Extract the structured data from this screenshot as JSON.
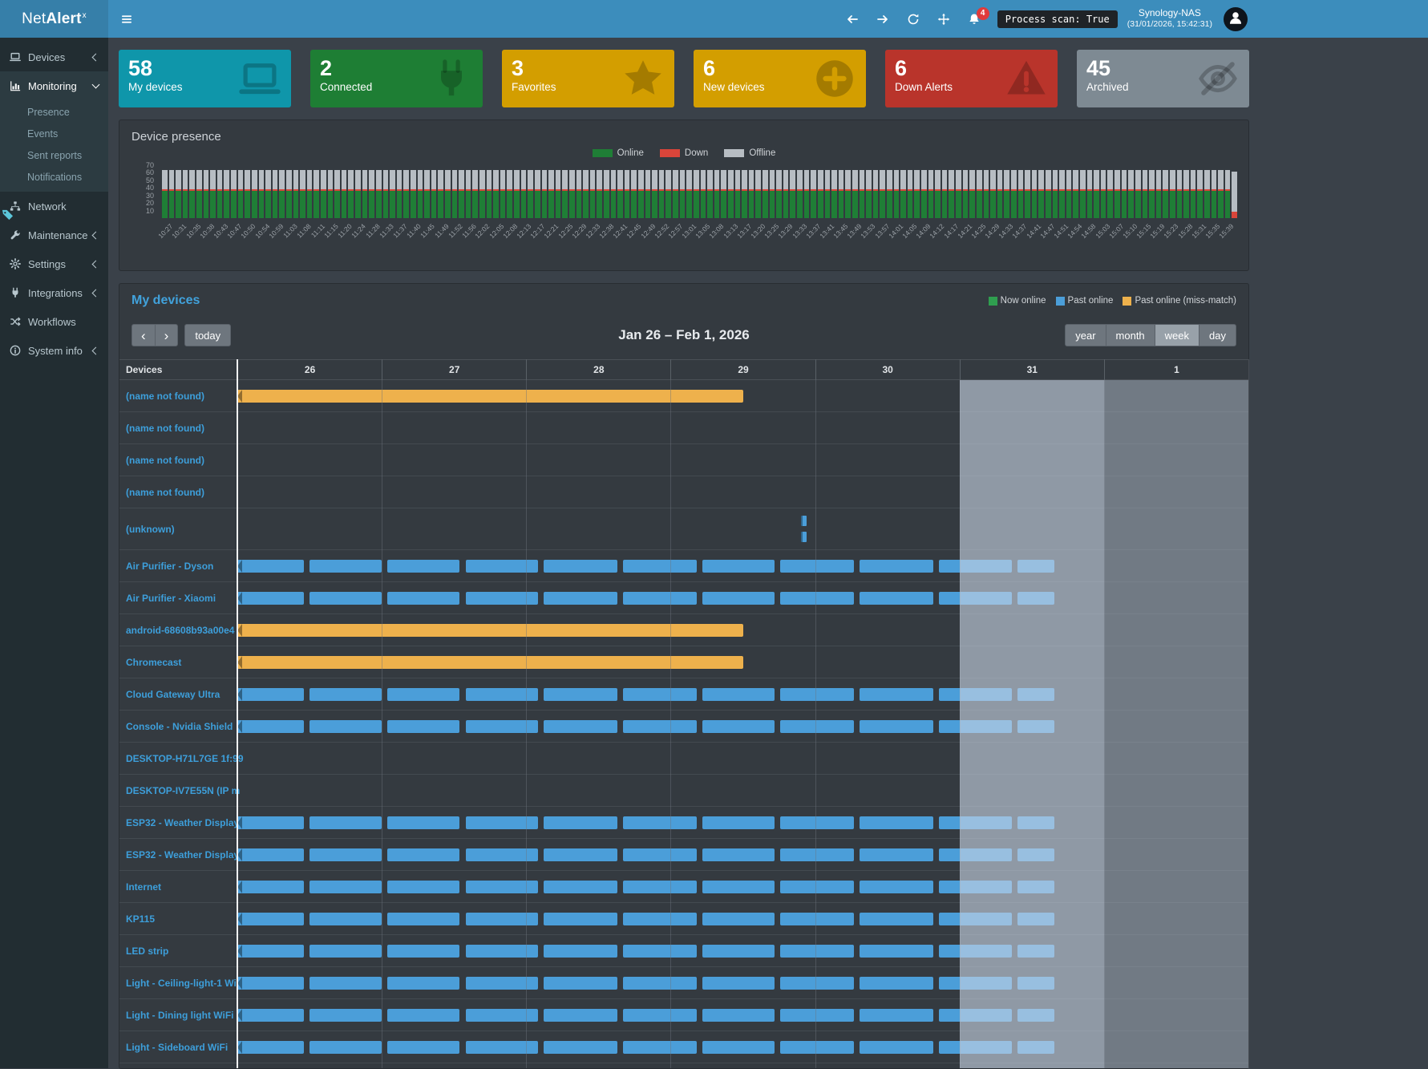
{
  "header": {
    "brand_light": "Net",
    "brand_bold": "Alert",
    "brand_sup": "x",
    "notification_count": "4",
    "process_scan": "Process scan: True",
    "host_name": "Synology-NAS",
    "host_time": "(31/01/2026, 15:42:31)"
  },
  "sidebar": {
    "items": [
      {
        "label": "Devices",
        "icon": "laptop-icon",
        "chevron": "left"
      },
      {
        "label": "Monitoring",
        "icon": "chart-icon",
        "chevron": "down",
        "active": true,
        "children": [
          {
            "label": "Presence"
          },
          {
            "label": "Events"
          },
          {
            "label": "Sent reports"
          },
          {
            "label": "Notifications"
          }
        ]
      },
      {
        "label": "Network",
        "icon": "network-icon"
      },
      {
        "label": "Maintenance",
        "icon": "wrench-icon",
        "chevron": "left"
      },
      {
        "label": "Settings",
        "icon": "gear-icon",
        "chevron": "left"
      },
      {
        "label": "Integrations",
        "icon": "plug-icon",
        "chevron": "left"
      },
      {
        "label": "Workflows",
        "icon": "shuffle-icon"
      },
      {
        "label": "System info",
        "icon": "info-icon",
        "chevron": "left"
      }
    ]
  },
  "stat_cards": [
    {
      "value": "58",
      "label": "My devices",
      "color": "#0f96aa",
      "icon": "laptop-icon"
    },
    {
      "value": "2",
      "label": "Connected",
      "color": "#1e7e34",
      "icon": "plug-icon"
    },
    {
      "value": "3",
      "label": "Favorites",
      "color": "#d39e00",
      "icon": "star-icon"
    },
    {
      "value": "6",
      "label": "New devices",
      "color": "#d39e00",
      "icon": "plus-circle-icon"
    },
    {
      "value": "6",
      "label": "Down Alerts",
      "color": "#b9342b",
      "icon": "warning-icon"
    },
    {
      "value": "45",
      "label": "Archived",
      "color": "#7e8a93",
      "icon": "eye-slash-icon"
    }
  ],
  "presence": {
    "title": "Device presence",
    "chart_data": {
      "type": "bar",
      "stacked": true,
      "title": "Device presence",
      "ylim": [
        0,
        70
      ],
      "yticks": [
        70,
        60,
        50,
        40,
        30,
        20,
        10
      ],
      "bars_per_label": 2,
      "legend_position": "top-center",
      "series": [
        {
          "name": "Online",
          "color": "#1f7e36",
          "value_per_bar": 36
        },
        {
          "name": "Down",
          "color": "#d9453a",
          "value_per_bar": 2
        },
        {
          "name": "Offline",
          "color": "#b7bdc3",
          "value_per_bar": 26
        }
      ],
      "last_bar": {
        "Online": 0,
        "Down": 8,
        "Offline": 54
      },
      "x_labels": [
        "10:27",
        "10:31",
        "10:35",
        "10:38",
        "10:43",
        "10:47",
        "10:50",
        "10:54",
        "10:59",
        "11:03",
        "11:08",
        "11:11",
        "11:15",
        "11:20",
        "11:24",
        "11:28",
        "11:33",
        "11:37",
        "11:40",
        "11:45",
        "11:49",
        "11:52",
        "11:56",
        "12:02",
        "12:05",
        "12:08",
        "12:13",
        "12:17",
        "12:21",
        "12:25",
        "12:29",
        "12:33",
        "12:38",
        "12:41",
        "12:45",
        "12:49",
        "12:52",
        "12:57",
        "13:01",
        "13:05",
        "13:08",
        "13:13",
        "13:17",
        "13:20",
        "13:25",
        "13:29",
        "13:33",
        "13:37",
        "13:41",
        "13:45",
        "13:49",
        "13:53",
        "13:57",
        "14:01",
        "14:05",
        "14:09",
        "14:12",
        "14:17",
        "14:21",
        "14:25",
        "14:29",
        "14:33",
        "14:37",
        "14:41",
        "14:47",
        "14:51",
        "14:54",
        "14:58",
        "15:03",
        "15:07",
        "15:10",
        "15:15",
        "15:19",
        "15:23",
        "15:28",
        "15:31",
        "15:35",
        "15:39"
      ]
    }
  },
  "timeline": {
    "title": "My devices",
    "legend": [
      {
        "label": "Now online",
        "color": "#2f9e4f"
      },
      {
        "label": "Past online",
        "color": "#4b9ed9"
      },
      {
        "label": "Past online (miss-match)",
        "color": "#eeb14c"
      }
    ],
    "toolbar": {
      "prev": "‹",
      "next": "›",
      "today": "today",
      "title": "Jan 26 – Feb 1, 2026",
      "views": [
        {
          "label": "year"
        },
        {
          "label": "month"
        },
        {
          "label": "week",
          "active": true
        },
        {
          "label": "day"
        }
      ]
    },
    "grid": {
      "devices_header": "Devices",
      "days": [
        "26",
        "27",
        "28",
        "29",
        "30",
        "31",
        "1"
      ],
      "today_day_index": 5,
      "next_day_index": 6
    },
    "colors": {
      "past_online": "#4b9ed9",
      "miss_match": "#eeb14c",
      "today_overlay": "rgba(200,211,227,0.62)",
      "future_overlay": "rgba(164,174,187,0.55)"
    },
    "standard_segments_days": [
      [
        0,
        0.46
      ],
      [
        0.5,
        1.0
      ],
      [
        1.04,
        1.54
      ],
      [
        1.58,
        2.08
      ],
      [
        2.12,
        2.63
      ],
      [
        2.67,
        3.18
      ],
      [
        3.22,
        3.72
      ],
      [
        3.76,
        4.27
      ],
      [
        4.31,
        4.82
      ],
      [
        4.86,
        5.36
      ],
      [
        5.4,
        5.654
      ]
    ],
    "rows": [
      {
        "name": "(name not found)",
        "type": "orange",
        "segments_days": [
          [
            0,
            3.5
          ]
        ]
      },
      {
        "name": "(name not found)",
        "type": "none"
      },
      {
        "name": "(name not found)",
        "type": "none"
      },
      {
        "name": "(name not found)",
        "type": "none"
      },
      {
        "name": "(unknown)",
        "type": "ticks",
        "tick_day": 3.9,
        "tick_width_day": 0.04
      },
      {
        "name": "Air Purifier - Dyson",
        "type": "blue"
      },
      {
        "name": "Air Purifier - Xiaomi",
        "type": "blue"
      },
      {
        "name": "android-68608b93a00e4",
        "type": "orange",
        "segments_days": [
          [
            0,
            3.5
          ]
        ]
      },
      {
        "name": "Chromecast",
        "type": "orange",
        "segments_days": [
          [
            0,
            3.5
          ]
        ]
      },
      {
        "name": "Cloud Gateway Ultra",
        "type": "blue"
      },
      {
        "name": "Console - Nvidia Shield",
        "type": "blue"
      },
      {
        "name": "DESKTOP-H71L7GE 1f:99",
        "type": "none"
      },
      {
        "name": "DESKTOP-IV7E55N (IP m",
        "type": "none"
      },
      {
        "name": "ESP32 - Weather Display",
        "type": "blue"
      },
      {
        "name": "ESP32 - Weather Display",
        "type": "blue"
      },
      {
        "name": "Internet",
        "type": "blue"
      },
      {
        "name": "KP115",
        "type": "blue"
      },
      {
        "name": "LED strip",
        "type": "blue"
      },
      {
        "name": "Light - Ceiling-light-1 Wi",
        "type": "blue"
      },
      {
        "name": "Light - Dining light WiFi",
        "type": "blue"
      },
      {
        "name": "Light - Sideboard WiFi",
        "type": "blue"
      }
    ]
  }
}
